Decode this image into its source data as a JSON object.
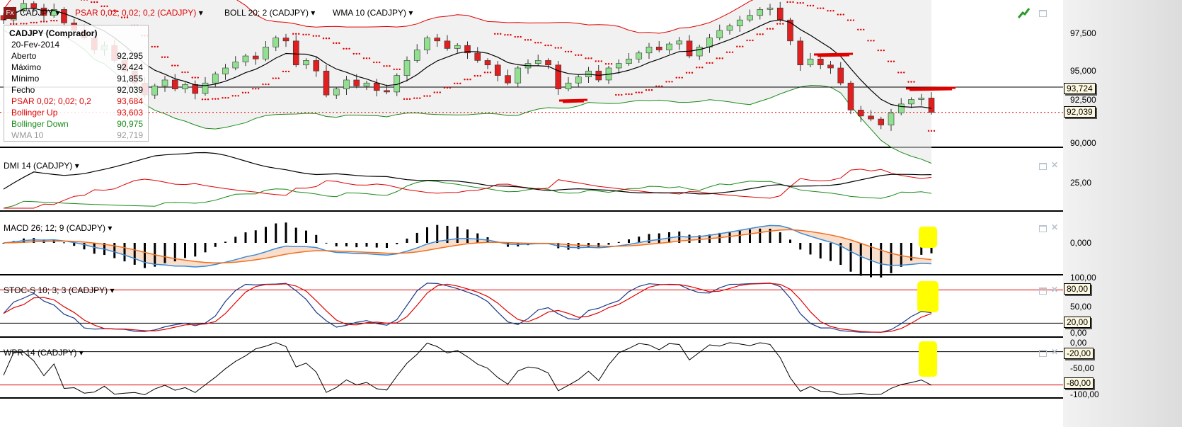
{
  "header": {
    "symbol": "CADJPY",
    "psar": "PSAR 0,02; 0,02; 0,2 (CADJPY)",
    "boll": "BOLL 20; 2 (CADJPY)",
    "wma": "WMA 10 (CADJPY)",
    "fx_icon": "Fx"
  },
  "legend": {
    "title": "CADJPY (Comprador)",
    "date": "20-Fev-2014",
    "rows": [
      {
        "label": "Aberto",
        "value": "92,295",
        "color": "#000000"
      },
      {
        "label": "Máximo",
        "value": "92,424",
        "color": "#000000"
      },
      {
        "label": "Mínimo",
        "value": "91,855",
        "color": "#000000"
      },
      {
        "label": "Fecho",
        "value": "92,039",
        "color": "#000000"
      },
      {
        "label": "PSAR 0,02; 0,02; 0,2",
        "value": "93,684",
        "color": "#e00000"
      },
      {
        "label": "Bollinger Up",
        "value": "93,603",
        "color": "#e00000"
      },
      {
        "label": "Bollinger Down",
        "value": "90,975",
        "color": "#1a8a1a"
      },
      {
        "label": "WMA 10",
        "value": "92,719",
        "color": "#999999"
      }
    ]
  },
  "panels": {
    "dmi": "DMI 14 (CADJPY)",
    "macd": "MACD 26; 12; 9 (CADJPY)",
    "stoc": "STOC-S 10; 3; 3 (CADJPY)",
    "wpr": "WPR 14 (CADJPY)"
  },
  "axis": {
    "main": [
      "97,500",
      "95,000",
      "92,500",
      "90,000"
    ],
    "hline": "93,724",
    "last": "92,039",
    "dmi": "25,00",
    "macd": "0,000",
    "stoc": [
      "100,00",
      "50,00",
      "0,00"
    ],
    "stoc_boxes": [
      "80,00",
      "20,00"
    ],
    "wpr": [
      "0,00",
      "-50,00",
      "-100,00"
    ],
    "wpr_boxes": [
      "-20,00",
      "-80,00"
    ]
  },
  "colors": {
    "up": "#90e090",
    "down": "#e02020",
    "boll_up": "#e00000",
    "boll_down": "#1a8a1a",
    "macd": "#3a8ad8",
    "signal": "#f07020",
    "highlight": "#ffff00"
  },
  "chart_data": {
    "type": "candlestick",
    "symbol": "CADJPY",
    "ylim": [
      90,
      98.5
    ],
    "hline": 93.724,
    "last": 92.039,
    "closes": [
      98.2,
      98.8,
      99.3,
      99.0,
      98.5,
      98.9,
      98.0,
      97.5,
      97.0,
      96.2,
      96.5,
      95.5,
      94.8,
      94.0,
      93.2,
      93.8,
      94.2,
      93.6,
      93.9,
      93.3,
      94.0,
      94.6,
      95.0,
      95.4,
      95.8,
      95.6,
      96.4,
      97.0,
      96.8,
      95.2,
      95.5,
      94.8,
      93.2,
      93.6,
      94.2,
      93.8,
      94.0,
      93.5,
      93.4,
      94.5,
      95.5,
      96.2,
      97.0,
      96.8,
      96.3,
      96.5,
      96.0,
      95.5,
      95.2,
      94.5,
      94.0,
      95.0,
      95.3,
      95.5,
      95.2,
      93.6,
      94.0,
      94.4,
      94.8,
      94.2,
      95.0,
      95.3,
      95.6,
      96.0,
      96.4,
      96.2,
      96.6,
      96.8,
      95.8,
      96.4,
      97.0,
      97.5,
      97.8,
      98.2,
      98.5,
      98.9,
      99.0,
      98.2,
      96.8,
      95.2,
      95.6,
      95.2,
      95.0,
      94.0,
      92.2,
      91.8,
      91.6,
      91.2,
      92.0,
      92.6,
      92.9,
      93.0,
      92.04
    ]
  }
}
